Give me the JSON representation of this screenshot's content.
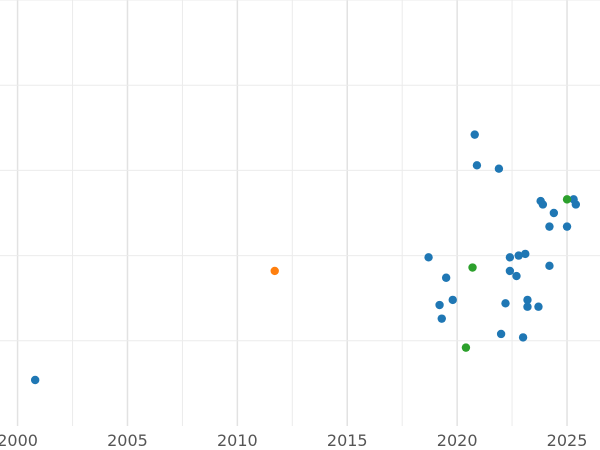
{
  "chart_data": {
    "type": "scatter",
    "title": "",
    "xlabel": "",
    "ylabel": "",
    "xlim": [
      1999.2,
      2026.5
    ],
    "ylim": [
      0,
      100
    ],
    "grid": true,
    "x_ticks": [
      2000,
      2005,
      2010,
      2015,
      2020,
      2025
    ],
    "x_tick_labels": [
      "2000",
      "2005",
      "2010",
      "2015",
      "2020",
      "2025"
    ],
    "y_gridlines": [
      20,
      40,
      60,
      80,
      100
    ],
    "colors": {
      "blue": "#1f77b4",
      "orange": "#ff7f0e",
      "green": "#2ca02c"
    },
    "series": [
      {
        "color": "#1f77b4",
        "points": [
          [
            2000.8,
            10.8
          ],
          [
            2018.7,
            39.6
          ],
          [
            2019.2,
            28.4
          ],
          [
            2019.3,
            25.2
          ],
          [
            2019.5,
            34.8
          ],
          [
            2019.8,
            29.6
          ],
          [
            2020.8,
            68.4
          ],
          [
            2020.9,
            61.2
          ],
          [
            2021.9,
            60.4
          ],
          [
            2022.0,
            21.6
          ],
          [
            2022.2,
            28.8
          ],
          [
            2022.4,
            36.4
          ],
          [
            2022.4,
            39.6
          ],
          [
            2022.7,
            35.2
          ],
          [
            2022.8,
            40.0
          ],
          [
            2023.0,
            20.8
          ],
          [
            2023.1,
            40.4
          ],
          [
            2023.2,
            29.6
          ],
          [
            2023.2,
            28.0
          ],
          [
            2023.7,
            28.0
          ],
          [
            2023.8,
            52.8
          ],
          [
            2023.9,
            52.0
          ],
          [
            2024.2,
            46.8
          ],
          [
            2024.2,
            37.6
          ],
          [
            2024.4,
            50.0
          ],
          [
            2025.0,
            46.8
          ],
          [
            2025.3,
            53.2
          ],
          [
            2025.4,
            52.0
          ]
        ]
      },
      {
        "color": "#ff7f0e",
        "points": [
          [
            2011.7,
            36.4
          ]
        ]
      },
      {
        "color": "#2ca02c",
        "points": [
          [
            2020.4,
            18.4
          ],
          [
            2020.7,
            37.2
          ],
          [
            2025.0,
            53.2
          ]
        ]
      }
    ]
  }
}
